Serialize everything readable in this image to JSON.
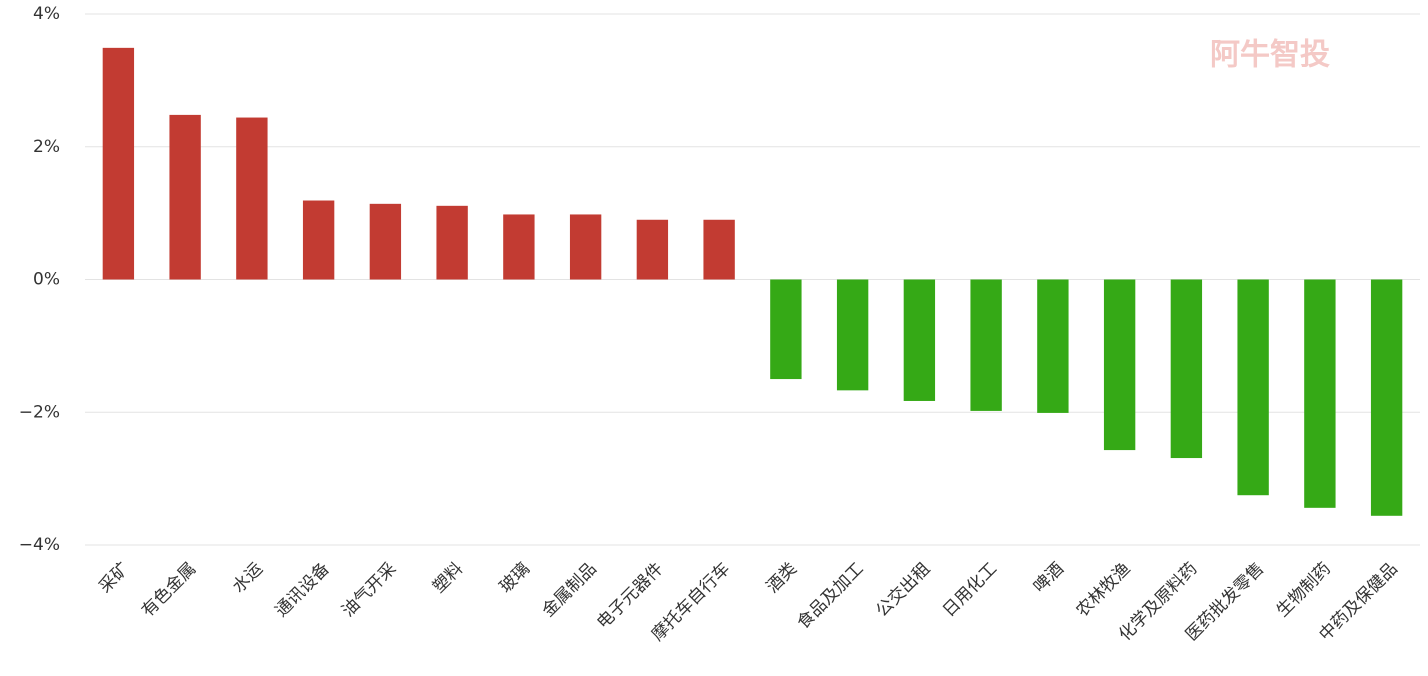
{
  "chart_data": {
    "type": "bar",
    "watermark": "阿牛智投",
    "categories": [
      "采矿",
      "有色金属",
      "水运",
      "通讯设备",
      "油气开采",
      "塑料",
      "玻璃",
      "金属制品",
      "电子元器件",
      "摩托车自行车",
      "酒类",
      "食品及加工",
      "公交出租",
      "日用化工",
      "啤酒",
      "农林牧渔",
      "化学及原料药",
      "医药批发零售",
      "生物制药",
      "中药及保健品"
    ],
    "values": [
      3.49,
      2.48,
      2.44,
      1.19,
      1.14,
      1.11,
      0.98,
      0.98,
      0.9,
      0.9,
      -1.5,
      -1.67,
      -1.83,
      -1.98,
      -2.01,
      -2.57,
      -2.69,
      -3.25,
      -3.44,
      -3.56
    ],
    "positive_color": "#c23b32",
    "negative_color": "#35a916",
    "ylim": [
      -4,
      4
    ],
    "yticks": [
      {
        "value": 4,
        "label": "4%"
      },
      {
        "value": 2,
        "label": "2%"
      },
      {
        "value": 0,
        "label": "0%"
      },
      {
        "value": -2,
        "label": "−2%"
      },
      {
        "value": -4,
        "label": "−4%"
      }
    ],
    "grid": true
  }
}
